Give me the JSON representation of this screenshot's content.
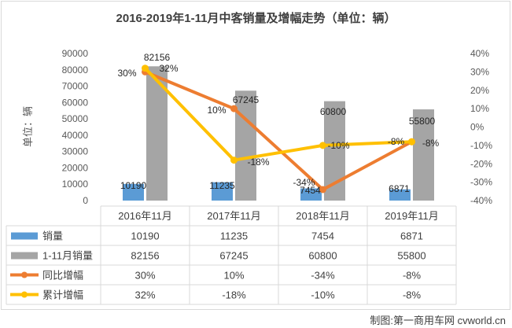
{
  "chart_data": {
    "type": "bar",
    "title": "2016-2019年1-11月中客销量及增幅走势（单位：辆）",
    "ylabel": "单位：辆",
    "ylim": [
      0,
      90000
    ],
    "ylim_right": [
      -40,
      40
    ],
    "yticks": [
      "0",
      "10000",
      "20000",
      "30000",
      "40000",
      "50000",
      "60000",
      "70000",
      "80000",
      "90000"
    ],
    "yticks_right": [
      "-40%",
      "-30%",
      "-20%",
      "-10%",
      "0%",
      "10%",
      "20%",
      "30%",
      "40%"
    ],
    "categories": [
      "2016年11月",
      "2017年11月",
      "2018年11月",
      "2019年11月"
    ],
    "series": [
      {
        "name": "销量",
        "kind": "bar",
        "color": "#5b9bd5",
        "values": [
          10190,
          11235,
          7454,
          6871
        ],
        "labels": [
          "10190",
          "11235",
          "7454",
          "6871"
        ]
      },
      {
        "name": "1-11月销量",
        "kind": "bar",
        "color": "#a5a5a5",
        "values": [
          82156,
          67245,
          60800,
          55800
        ],
        "labels": [
          "82156",
          "67245",
          "60800",
          "55800"
        ]
      },
      {
        "name": "同比增幅",
        "kind": "line",
        "axis": "right",
        "color": "#ed7d31",
        "values": [
          30,
          10,
          -34,
          -8
        ],
        "labels": [
          "30%",
          "10%",
          "-34%",
          "-8%"
        ]
      },
      {
        "name": "累计增幅",
        "kind": "line",
        "axis": "right",
        "color": "#ffc000",
        "values": [
          32,
          -18,
          -10,
          -8
        ],
        "labels": [
          "32%",
          "-18%",
          "-10%",
          "-8%"
        ]
      }
    ],
    "grid": false,
    "legend": "data table"
  },
  "source_note": "制图:第一商用车网 cvworld.cn"
}
